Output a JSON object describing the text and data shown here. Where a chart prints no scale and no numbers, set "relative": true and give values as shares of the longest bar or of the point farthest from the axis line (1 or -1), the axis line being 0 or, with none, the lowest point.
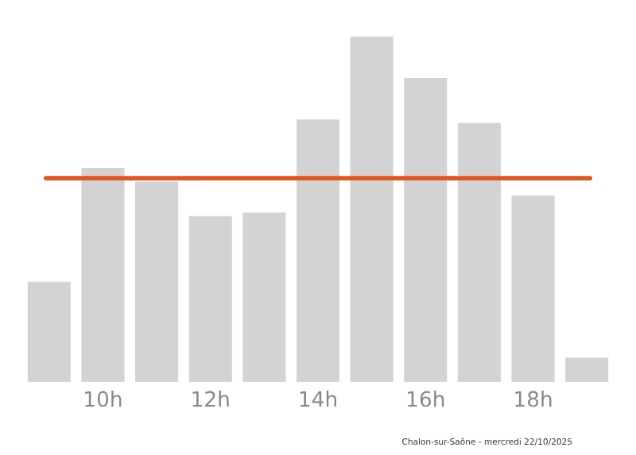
{
  "chart_data": {
    "type": "bar",
    "relative": true,
    "categories": [
      null,
      "10h",
      null,
      "12h",
      null,
      "14h",
      null,
      "16h",
      null,
      "18h",
      null
    ],
    "values": [
      0.29,
      0.62,
      0.58,
      0.48,
      0.49,
      0.76,
      1,
      0.88,
      0.75,
      0.54,
      0.07
    ],
    "color": "#d3d3d3",
    "ref_lines": [
      {
        "axis": "y",
        "value": 0.59,
        "color": "#e0561b"
      }
    ],
    "annotations": [
      "Chalon-sur-Saône - mercredi 22/10/2025"
    ],
    "grid": false,
    "legend": false
  }
}
